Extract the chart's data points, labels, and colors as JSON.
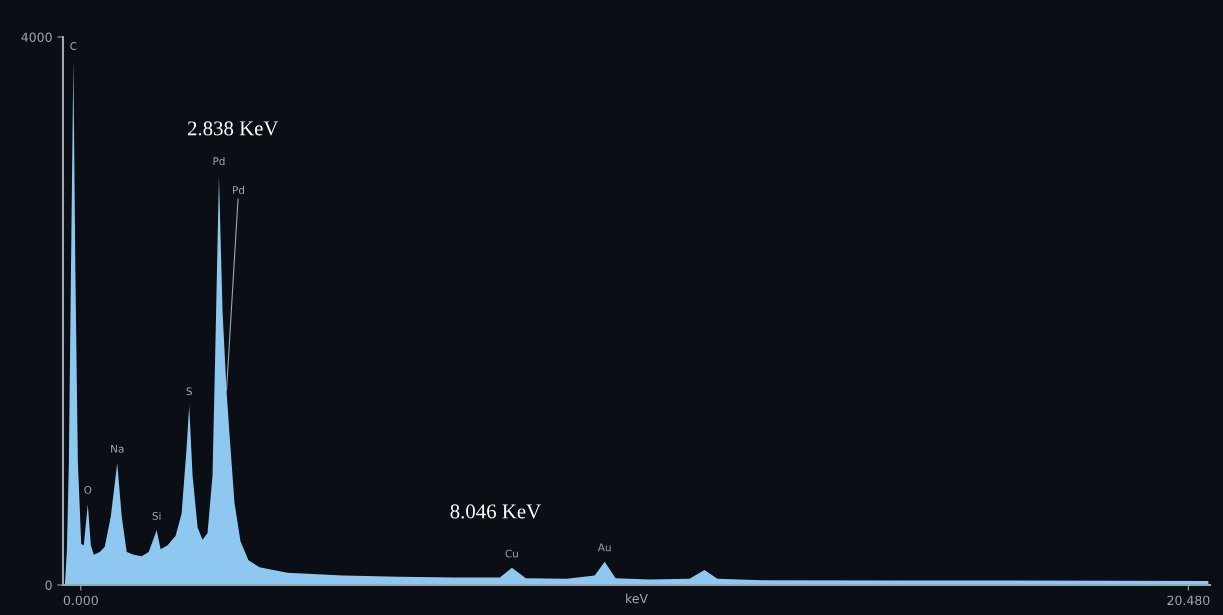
{
  "chart_data": {
    "type": "area",
    "xlabel": "keV",
    "x": [
      -0.295,
      -0.258,
      -0.221,
      -0.185,
      -0.138,
      -0.101,
      -0.055,
      0.007,
      0.055,
      0.129,
      0.185,
      0.24,
      0.351,
      0.443,
      0.554,
      0.673,
      0.756,
      0.849,
      0.978,
      1.125,
      1.255,
      1.402,
      1.476,
      1.605,
      1.753,
      1.863,
      1.956,
      2.004,
      2.066,
      2.159,
      2.251,
      2.343,
      2.435,
      2.491,
      2.554,
      2.62,
      2.694,
      2.749,
      2.841,
      2.952,
      3.1,
      3.303,
      3.819,
      4.852,
      5.886,
      6.919,
      7.749,
      7.97,
      8.229,
      8.985,
      9.502,
      9.686,
      9.889,
      10.517,
      11.255,
      11.531,
      11.771,
      12.601,
      15.185,
      20.849
    ],
    "series": [
      {
        "color": "#8ec8f0",
        "values": [
          0,
          250,
          900,
          2200,
          3830,
          2300,
          900,
          300,
          290,
          590,
          290,
          220,
          240,
          280,
          500,
          890,
          500,
          240,
          220,
          210,
          240,
          400,
          260,
          290,
          360,
          520,
          1000,
          1310,
          800,
          420,
          330,
          380,
          800,
          1800,
          2990,
          2000,
          1420,
          1100,
          600,
          320,
          180,
          130,
          90,
          70,
          60,
          55,
          55,
          125,
          50,
          45,
          70,
          170,
          50,
          40,
          45,
          110,
          45,
          35,
          33,
          30
        ]
      }
    ],
    "xlim": [
      -0.33,
      20.88
    ],
    "ylim": [
      0,
      4000
    ],
    "xticks": [
      {
        "value": 0,
        "label": "0.000"
      },
      {
        "value": 20.48,
        "label": "20.480"
      }
    ],
    "yticks": [
      0,
      4000
    ],
    "grid": false,
    "legend": false,
    "annotations": [
      "2.838 KeV",
      "8.046 KeV",
      {
        "text": "C",
        "x": -0.138,
        "y": 3830
      },
      {
        "text": "O",
        "x": 0.129,
        "y": 590
      },
      {
        "text": "Na",
        "x": 0.673,
        "y": 890
      },
      {
        "text": "Si",
        "x": 1.402,
        "y": 400
      },
      {
        "text": "S",
        "x": 2.004,
        "y": 1310
      },
      {
        "text": "Pd",
        "x": 2.554,
        "y": 2990
      },
      {
        "text": "Pd",
        "x": 2.694,
        "y": 1420
      },
      {
        "text": "Cu",
        "x": 7.97,
        "y": 125
      },
      {
        "text": "Au",
        "x": 9.686,
        "y": 170
      }
    ]
  }
}
